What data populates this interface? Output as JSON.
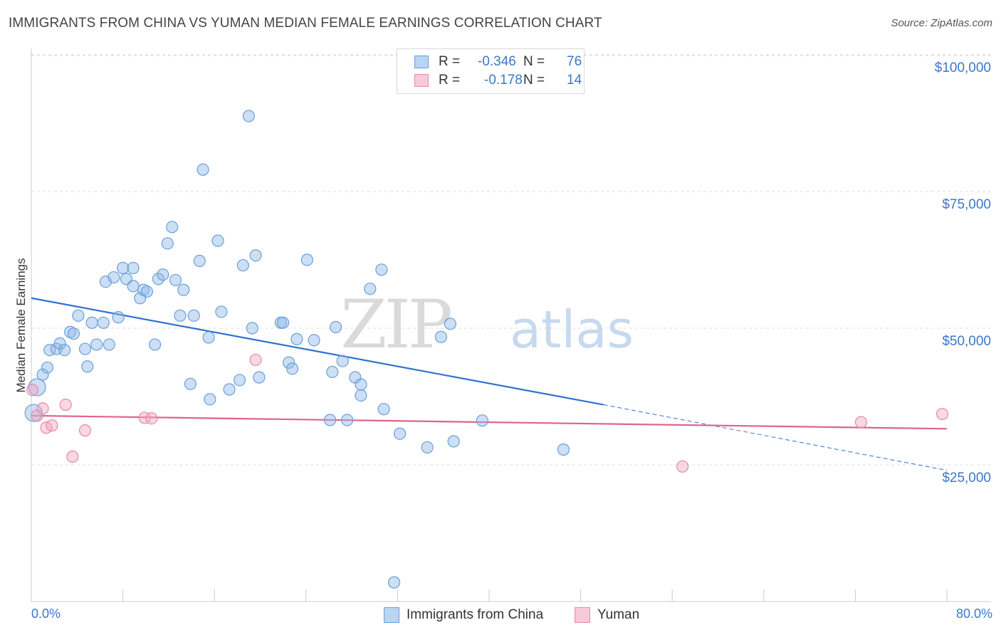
{
  "header": {
    "title": "IMMIGRANTS FROM CHINA VS YUMAN MEDIAN FEMALE EARNINGS CORRELATION CHART",
    "source": "Source: ZipAtlas.com"
  },
  "watermark": {
    "zip": "ZIP",
    "atlas": "atlas"
  },
  "legend": {
    "rows": [
      {
        "r_label": "R = ",
        "r_value": "-0.346",
        "n_label": "N = ",
        "n_value": "76",
        "color": "#8fb8e8"
      },
      {
        "r_label": "R = ",
        "r_value": "-0.178",
        "n_label": "N = ",
        "n_value": "14",
        "color": "#f1a7c0"
      }
    ]
  },
  "bottom_legend": {
    "items": [
      {
        "label": "Immigrants from China",
        "color": "#8fb8e8"
      },
      {
        "label": "Yuman",
        "color": "#f1a7c0"
      }
    ]
  },
  "chart_data": {
    "type": "scatter",
    "title": "IMMIGRANTS FROM CHINA VS YUMAN MEDIAN FEMALE EARNINGS CORRELATION CHART",
    "ylabel": "Median Female Earnings",
    "xlabel": "",
    "xlim": [
      0,
      80
    ],
    "ylim": [
      0,
      103000
    ],
    "x_tick_labels": [
      "0.0%",
      "80.0%"
    ],
    "y_ticks": [
      25000,
      50000,
      75000,
      100000
    ],
    "y_tick_labels": [
      "$25,000",
      "$50,000",
      "$75,000",
      "$100,000"
    ],
    "grid": true,
    "legend_position": "top-center",
    "series": [
      {
        "name": "Immigrants from China",
        "color": "#8fb8e8",
        "stroke": "#6a9fd8",
        "trend_color": "#2f72cf",
        "trend": {
          "x0": 0,
          "y0": 55500,
          "x1": 50,
          "y1": 36000,
          "dashed_to_x": 80,
          "dashed_to_y": 24000
        },
        "points": [
          [
            0.2,
            34500
          ],
          [
            0.5,
            39200
          ],
          [
            1.0,
            41500
          ],
          [
            1.4,
            42800
          ],
          [
            1.6,
            46000
          ],
          [
            2.2,
            46200
          ],
          [
            2.5,
            47200
          ],
          [
            2.9,
            46000
          ],
          [
            3.4,
            49300
          ],
          [
            3.7,
            49000
          ],
          [
            4.1,
            52300
          ],
          [
            4.7,
            46200
          ],
          [
            4.9,
            43000
          ],
          [
            5.3,
            51000
          ],
          [
            5.7,
            47000
          ],
          [
            6.3,
            51000
          ],
          [
            6.8,
            47000
          ],
          [
            7.6,
            52000
          ],
          [
            6.5,
            58500
          ],
          [
            7.2,
            59300
          ],
          [
            8.0,
            61000
          ],
          [
            8.3,
            59000
          ],
          [
            8.9,
            61000
          ],
          [
            8.9,
            57700
          ],
          [
            9.5,
            55500
          ],
          [
            9.8,
            57000
          ],
          [
            10.1,
            56700
          ],
          [
            10.8,
            47000
          ],
          [
            11.1,
            59000
          ],
          [
            11.5,
            59800
          ],
          [
            11.9,
            65500
          ],
          [
            12.3,
            68500
          ],
          [
            12.6,
            58800
          ],
          [
            13.0,
            52300
          ],
          [
            13.3,
            57000
          ],
          [
            13.9,
            39800
          ],
          [
            14.2,
            52300
          ],
          [
            14.7,
            62300
          ],
          [
            15.0,
            79000
          ],
          [
            15.5,
            48300
          ],
          [
            15.6,
            37000
          ],
          [
            16.3,
            66000
          ],
          [
            16.6,
            53000
          ],
          [
            17.3,
            38800
          ],
          [
            18.2,
            40500
          ],
          [
            18.5,
            61500
          ],
          [
            19.0,
            88800
          ],
          [
            19.3,
            50000
          ],
          [
            19.6,
            63300
          ],
          [
            19.9,
            41000
          ],
          [
            21.8,
            51000
          ],
          [
            22.0,
            51000
          ],
          [
            22.5,
            43700
          ],
          [
            22.8,
            42600
          ],
          [
            23.2,
            48000
          ],
          [
            24.1,
            62500
          ],
          [
            24.7,
            47800
          ],
          [
            26.1,
            33200
          ],
          [
            26.3,
            42000
          ],
          [
            26.6,
            50200
          ],
          [
            27.2,
            44000
          ],
          [
            27.6,
            33200
          ],
          [
            28.3,
            41000
          ],
          [
            28.8,
            37700
          ],
          [
            28.8,
            39700
          ],
          [
            29.6,
            57200
          ],
          [
            30.6,
            60700
          ],
          [
            30.8,
            35200
          ],
          [
            31.7,
            3500
          ],
          [
            32.2,
            30700
          ],
          [
            34.6,
            28200
          ],
          [
            35.8,
            48400
          ],
          [
            36.6,
            50800
          ],
          [
            36.9,
            29300
          ],
          [
            39.4,
            33100
          ],
          [
            46.5,
            27800
          ]
        ]
      },
      {
        "name": "Yuman",
        "color": "#f1a7c0",
        "stroke": "#e68aa8",
        "trend_color": "#e0628e",
        "trend": {
          "x0": 0,
          "y0": 34000,
          "x1": 80,
          "y1": 31600
        },
        "points": [
          [
            0.1,
            38700
          ],
          [
            0.5,
            34000
          ],
          [
            1.0,
            35300
          ],
          [
            1.3,
            31800
          ],
          [
            1.8,
            32200
          ],
          [
            3.0,
            36000
          ],
          [
            3.6,
            26500
          ],
          [
            4.7,
            31300
          ],
          [
            9.9,
            33600
          ],
          [
            10.5,
            33500
          ],
          [
            19.6,
            44200
          ],
          [
            56.9,
            24700
          ],
          [
            72.5,
            32800
          ],
          [
            79.6,
            34300
          ]
        ]
      }
    ]
  }
}
